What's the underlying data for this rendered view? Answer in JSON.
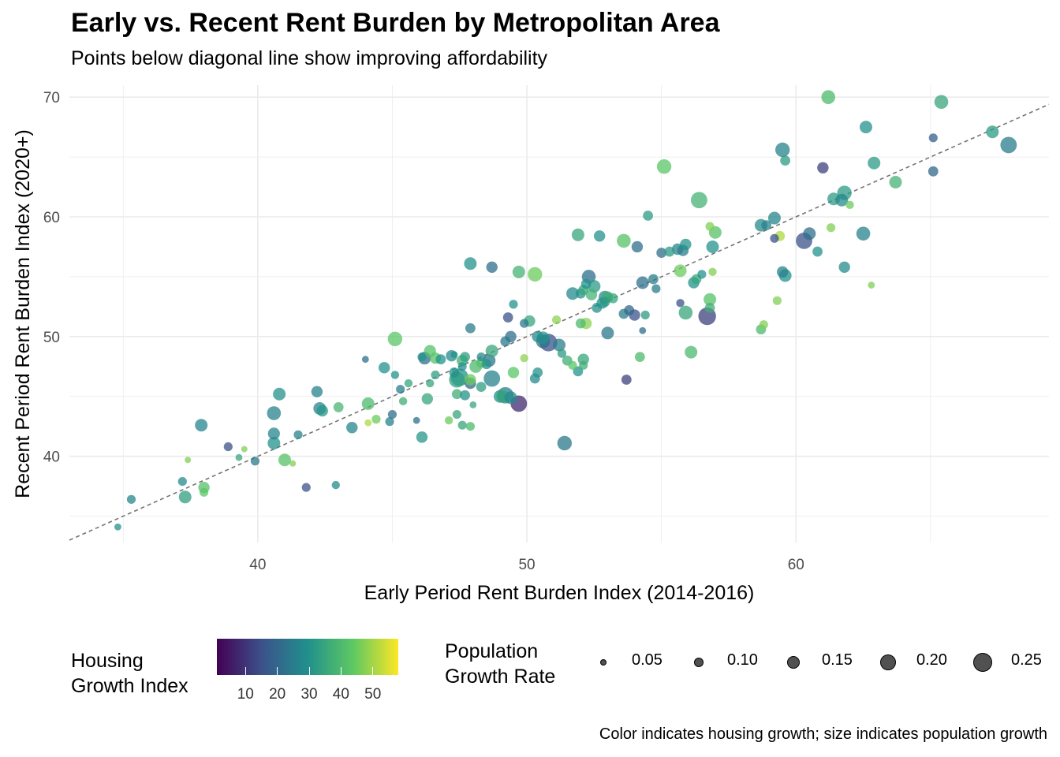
{
  "title": "Early vs. Recent Rent Burden by Metropolitan Area",
  "subtitle": "Points below diagonal line show improving affordability",
  "caption": "Color indicates housing growth; size indicates population growth",
  "colors": {
    "viridis": [
      "#440154",
      "#3b528b",
      "#21908c",
      "#5dc863",
      "#fde725"
    ],
    "grid": "#ebebeb",
    "refline": "#737373"
  },
  "legend": {
    "color_title_line1": "Housing",
    "color_title_line2": "Growth Index",
    "color_ticks": [
      "10",
      "20",
      "30",
      "40",
      "50"
    ],
    "color_tick_values": [
      10,
      20,
      30,
      40,
      50
    ],
    "color_range": [
      1,
      58
    ],
    "size_title_line1": "Population",
    "size_title_line2": "Growth Rate",
    "size_labels": [
      "0.05",
      "0.10",
      "0.15",
      "0.20",
      "0.25"
    ],
    "size_values": [
      0.05,
      0.1,
      0.15,
      0.2,
      0.25
    ]
  },
  "chart_data": {
    "type": "scatter",
    "title": "Early vs. Recent Rent Burden by Metropolitan Area",
    "subtitle": "Points below diagonal line show improving affordability",
    "xlabel": "Early Period Rent Burden Index (2014-2016)",
    "ylabel": "Recent Period Rent Burden Index (2020+)",
    "xlim": [
      33.0,
      69.4
    ],
    "ylim": [
      32.8,
      71.0
    ],
    "x_ticks": [
      40,
      50,
      60
    ],
    "y_ticks": [
      40,
      50,
      60,
      70
    ],
    "x_tick_labels": [
      "40",
      "50",
      "60"
    ],
    "y_tick_labels": [
      "40",
      "50",
      "60",
      "70"
    ],
    "grid": true,
    "legend_position": "bottom",
    "reference_line": {
      "type": "y=x",
      "style": "dashed"
    },
    "point_fields": [
      "x",
      "y",
      "housing_growth_index",
      "population_growth_rate"
    ],
    "points": [
      [
        34.8,
        34.1,
        30,
        0.05
      ],
      [
        35.3,
        36.4,
        27,
        0.08
      ],
      [
        37.2,
        37.9,
        28,
        0.08
      ],
      [
        37.3,
        36.6,
        33,
        0.14
      ],
      [
        37.4,
        39.7,
        47,
        0.04
      ],
      [
        37.9,
        42.6,
        27,
        0.14
      ],
      [
        38.0,
        37.0,
        43,
        0.08
      ],
      [
        38.0,
        37.4,
        42,
        0.12
      ],
      [
        38.9,
        40.8,
        15,
        0.08
      ],
      [
        39.3,
        39.9,
        35,
        0.05
      ],
      [
        39.5,
        40.6,
        47,
        0.04
      ],
      [
        39.9,
        39.6,
        24,
        0.08
      ],
      [
        40.6,
        43.6,
        26,
        0.16
      ],
      [
        40.6,
        41.9,
        27,
        0.13
      ],
      [
        40.6,
        41.1,
        30,
        0.14
      ],
      [
        40.8,
        45.2,
        30,
        0.14
      ],
      [
        41.0,
        39.7,
        42,
        0.14
      ],
      [
        41.3,
        39.4,
        47,
        0.04
      ],
      [
        41.5,
        41.8,
        26,
        0.08
      ],
      [
        41.8,
        37.4,
        15,
        0.08
      ],
      [
        42.2,
        45.4,
        26,
        0.12
      ],
      [
        42.3,
        44.0,
        27,
        0.14
      ],
      [
        42.4,
        43.8,
        31,
        0.12
      ],
      [
        42.9,
        37.6,
        28,
        0.07
      ],
      [
        43.0,
        44.1,
        39,
        0.1
      ],
      [
        43.5,
        42.4,
        27,
        0.12
      ],
      [
        44.0,
        48.1,
        22,
        0.05
      ],
      [
        44.1,
        42.8,
        51,
        0.05
      ],
      [
        44.1,
        44.4,
        40,
        0.14
      ],
      [
        44.4,
        43.1,
        45,
        0.08
      ],
      [
        44.7,
        47.4,
        30,
        0.12
      ],
      [
        44.9,
        42.9,
        26,
        0.08
      ],
      [
        45.0,
        43.5,
        22,
        0.08
      ],
      [
        45.1,
        49.8,
        43,
        0.17
      ],
      [
        45.1,
        46.8,
        30,
        0.07
      ],
      [
        45.3,
        45.6,
        25,
        0.08
      ],
      [
        45.4,
        44.6,
        37,
        0.07
      ],
      [
        45.6,
        46.1,
        35,
        0.07
      ],
      [
        45.9,
        43.0,
        22,
        0.05
      ],
      [
        46.1,
        41.6,
        31,
        0.12
      ],
      [
        46.1,
        48.3,
        30,
        0.08
      ],
      [
        46.2,
        48.2,
        22,
        0.14
      ],
      [
        46.3,
        44.8,
        35,
        0.12
      ],
      [
        46.4,
        46.1,
        35,
        0.07
      ],
      [
        46.4,
        48.8,
        42,
        0.13
      ],
      [
        46.6,
        46.8,
        33,
        0.08
      ],
      [
        46.6,
        48.2,
        42,
        0.12
      ],
      [
        46.8,
        48.1,
        30,
        0.1
      ],
      [
        47.1,
        43.0,
        45,
        0.07
      ],
      [
        47.2,
        48.4,
        28,
        0.12
      ],
      [
        47.3,
        48.5,
        30,
        0.05
      ],
      [
        47.3,
        47.0,
        30,
        0.1
      ],
      [
        47.4,
        45.2,
        37,
        0.1
      ],
      [
        47.4,
        43.5,
        35,
        0.08
      ],
      [
        47.4,
        46.4,
        33,
        0.19
      ],
      [
        47.5,
        46.6,
        30,
        0.22
      ],
      [
        47.6,
        48.0,
        37,
        0.12
      ],
      [
        47.6,
        47.5,
        30,
        0.08
      ],
      [
        47.6,
        42.6,
        35,
        0.08
      ],
      [
        47.7,
        48.3,
        33,
        0.1
      ],
      [
        47.7,
        45.1,
        30,
        0.1
      ],
      [
        47.9,
        46.1,
        20,
        0.12
      ],
      [
        47.9,
        46.4,
        45,
        0.12
      ],
      [
        47.9,
        42.5,
        40,
        0.08
      ],
      [
        47.9,
        50.7,
        25,
        0.1
      ],
      [
        47.9,
        56.1,
        30,
        0.14
      ],
      [
        48.0,
        44.3,
        35,
        0.05
      ],
      [
        48.1,
        47.5,
        40,
        0.14
      ],
      [
        48.3,
        45.8,
        33,
        0.1
      ],
      [
        48.3,
        47.8,
        42,
        0.1
      ],
      [
        48.3,
        48.3,
        28,
        0.08
      ],
      [
        48.5,
        47.7,
        30,
        0.1
      ],
      [
        48.6,
        48.0,
        23,
        0.14
      ],
      [
        48.7,
        46.5,
        26,
        0.2
      ],
      [
        48.7,
        48.8,
        35,
        0.14
      ],
      [
        48.7,
        55.8,
        22,
        0.12
      ],
      [
        49.0,
        45.0,
        30,
        0.14
      ],
      [
        49.1,
        45.0,
        35,
        0.14
      ],
      [
        49.2,
        45.1,
        25,
        0.2
      ],
      [
        49.2,
        49.6,
        24,
        0.1
      ],
      [
        49.3,
        51.6,
        15,
        0.1
      ],
      [
        49.4,
        44.9,
        28,
        0.14
      ],
      [
        49.4,
        50.0,
        22,
        0.12
      ],
      [
        49.5,
        52.7,
        30,
        0.08
      ],
      [
        49.5,
        47.0,
        43,
        0.12
      ],
      [
        49.7,
        44.4,
        8,
        0.2
      ],
      [
        49.7,
        55.4,
        38,
        0.14
      ],
      [
        49.9,
        48.2,
        48,
        0.07
      ],
      [
        49.9,
        51.1,
        24,
        0.08
      ],
      [
        50.1,
        51.3,
        35,
        0.12
      ],
      [
        50.3,
        55.2,
        45,
        0.17
      ],
      [
        50.3,
        46.5,
        28,
        0.1
      ],
      [
        50.4,
        47.0,
        30,
        0.1
      ],
      [
        50.4,
        50.0,
        28,
        0.12
      ],
      [
        50.6,
        49.9,
        30,
        0.14
      ],
      [
        50.6,
        49.6,
        22,
        0.16
      ],
      [
        50.8,
        49.5,
        15,
        0.22
      ],
      [
        51.1,
        51.4,
        48,
        0.08
      ],
      [
        51.2,
        49.3,
        25,
        0.14
      ],
      [
        51.3,
        48.6,
        32,
        0.08
      ],
      [
        51.4,
        41.1,
        24,
        0.17
      ],
      [
        51.5,
        48.0,
        37,
        0.1
      ],
      [
        51.7,
        53.6,
        28,
        0.14
      ],
      [
        51.7,
        47.6,
        43,
        0.08
      ],
      [
        51.9,
        58.5,
        35,
        0.14
      ],
      [
        51.9,
        47.1,
        30,
        0.1
      ],
      [
        52.0,
        51.1,
        40,
        0.1
      ],
      [
        52.0,
        53.6,
        30,
        0.1
      ],
      [
        52.1,
        53.9,
        35,
        0.1
      ],
      [
        52.1,
        48.1,
        35,
        0.12
      ],
      [
        52.1,
        47.6,
        37,
        0.08
      ],
      [
        52.2,
        51.1,
        48,
        0.12
      ],
      [
        52.2,
        54.4,
        30,
        0.1
      ],
      [
        52.3,
        55.0,
        22,
        0.16
      ],
      [
        52.4,
        53.5,
        38,
        0.12
      ],
      [
        52.5,
        54.2,
        32,
        0.14
      ],
      [
        52.6,
        52.4,
        30,
        0.1
      ],
      [
        52.7,
        58.4,
        30,
        0.12
      ],
      [
        52.8,
        52.8,
        30,
        0.12
      ],
      [
        52.9,
        53.3,
        28,
        0.14
      ],
      [
        52.9,
        52.9,
        32,
        0.1
      ],
      [
        53.0,
        53.3,
        37,
        0.12
      ],
      [
        53.0,
        50.3,
        24,
        0.14
      ],
      [
        53.2,
        53.2,
        35,
        0.1
      ],
      [
        53.6,
        58.0,
        42,
        0.16
      ],
      [
        53.6,
        51.9,
        25,
        0.1
      ],
      [
        53.7,
        46.4,
        12,
        0.1
      ],
      [
        53.8,
        52.2,
        20,
        0.1
      ],
      [
        54.0,
        51.8,
        15,
        0.12
      ],
      [
        54.1,
        57.5,
        22,
        0.12
      ],
      [
        54.2,
        48.3,
        40,
        0.1
      ],
      [
        54.3,
        54.5,
        22,
        0.14
      ],
      [
        54.3,
        50.5,
        22,
        0.05
      ],
      [
        54.4,
        51.8,
        32,
        0.08
      ],
      [
        54.5,
        60.1,
        32,
        0.1
      ],
      [
        54.7,
        54.8,
        25,
        0.1
      ],
      [
        54.8,
        54.0,
        25,
        0.08
      ],
      [
        55.0,
        57.0,
        22,
        0.1
      ],
      [
        55.1,
        64.2,
        43,
        0.17
      ],
      [
        55.3,
        57.1,
        32,
        0.1
      ],
      [
        55.6,
        57.3,
        27,
        0.12
      ],
      [
        55.7,
        55.5,
        45,
        0.14
      ],
      [
        55.7,
        52.8,
        15,
        0.07
      ],
      [
        55.8,
        57.2,
        25,
        0.12
      ],
      [
        55.9,
        52.0,
        35,
        0.16
      ],
      [
        55.9,
        57.7,
        30,
        0.12
      ],
      [
        56.1,
        48.7,
        40,
        0.14
      ],
      [
        56.2,
        54.5,
        30,
        0.12
      ],
      [
        56.3,
        54.8,
        35,
        0.1
      ],
      [
        56.4,
        61.4,
        38,
        0.2
      ],
      [
        56.5,
        55.2,
        30,
        0.08
      ],
      [
        56.7,
        51.7,
        12,
        0.22
      ],
      [
        56.8,
        59.2,
        47,
        0.08
      ],
      [
        56.8,
        52.4,
        37,
        0.1
      ],
      [
        56.8,
        53.1,
        42,
        0.14
      ],
      [
        56.9,
        55.4,
        47,
        0.07
      ],
      [
        56.9,
        57.5,
        30,
        0.14
      ],
      [
        57.0,
        58.7,
        42,
        0.14
      ],
      [
        58.7,
        59.3,
        28,
        0.14
      ],
      [
        58.7,
        50.6,
        40,
        0.1
      ],
      [
        58.8,
        51.0,
        47,
        0.08
      ],
      [
        58.9,
        59.3,
        26,
        0.1
      ],
      [
        59.2,
        59.9,
        27,
        0.14
      ],
      [
        59.2,
        58.2,
        15,
        0.08
      ],
      [
        59.3,
        53.0,
        47,
        0.08
      ],
      [
        59.4,
        58.4,
        51,
        0.1
      ],
      [
        59.5,
        65.6,
        26,
        0.17
      ],
      [
        59.5,
        55.4,
        26,
        0.12
      ],
      [
        59.6,
        55.1,
        30,
        0.14
      ],
      [
        59.6,
        64.7,
        32,
        0.1
      ],
      [
        60.3,
        58.0,
        15,
        0.2
      ],
      [
        60.5,
        58.6,
        22,
        0.14
      ],
      [
        60.8,
        57.1,
        30,
        0.1
      ],
      [
        61.0,
        64.1,
        12,
        0.12
      ],
      [
        61.2,
        70.0,
        40,
        0.16
      ],
      [
        61.3,
        59.1,
        47,
        0.08
      ],
      [
        61.4,
        61.5,
        32,
        0.14
      ],
      [
        61.7,
        61.4,
        28,
        0.14
      ],
      [
        61.8,
        62.0,
        32,
        0.17
      ],
      [
        61.8,
        55.8,
        28,
        0.12
      ],
      [
        62.0,
        61.0,
        45,
        0.07
      ],
      [
        62.5,
        58.6,
        26,
        0.16
      ],
      [
        62.6,
        67.5,
        30,
        0.14
      ],
      [
        62.8,
        54.3,
        47,
        0.05
      ],
      [
        62.9,
        64.5,
        32,
        0.14
      ],
      [
        63.7,
        62.9,
        38,
        0.14
      ],
      [
        65.1,
        63.8,
        20,
        0.1
      ],
      [
        65.1,
        66.6,
        18,
        0.08
      ],
      [
        65.4,
        69.6,
        35,
        0.16
      ],
      [
        67.3,
        67.1,
        32,
        0.14
      ],
      [
        67.9,
        66.0,
        25,
        0.2
      ]
    ]
  }
}
